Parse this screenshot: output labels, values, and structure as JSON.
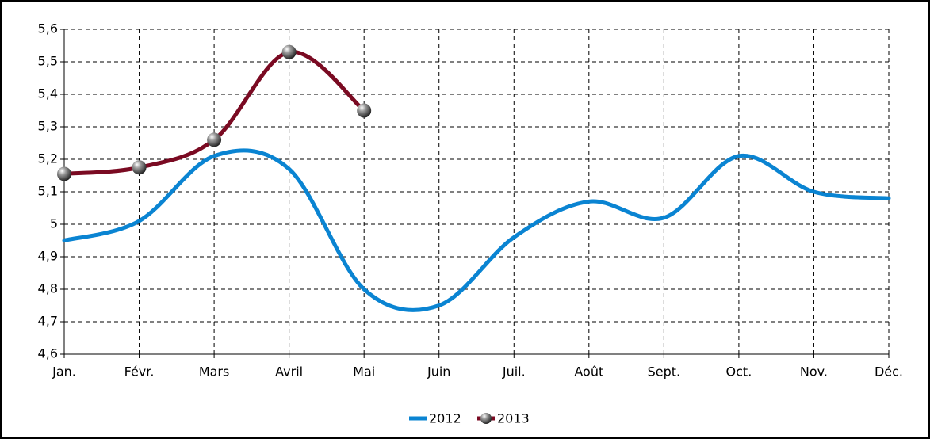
{
  "chart_data": {
    "type": "line",
    "smooth": true,
    "grid": true,
    "legend": "bottom",
    "categories": [
      "Jan.",
      "Févr.",
      "Mars",
      "Avril",
      "Mai",
      "Juin",
      "Juil.",
      "Août",
      "Sept.",
      "Oct.",
      "Nov.",
      "Déc."
    ],
    "series": [
      {
        "name": "2012",
        "color": "#0a84d2",
        "values": [
          4.95,
          5.01,
          5.21,
          5.17,
          4.8,
          4.75,
          4.96,
          5.07,
          5.02,
          5.21,
          5.1,
          5.08
        ]
      },
      {
        "name": "2013",
        "color": "#7a0a22",
        "marker": true,
        "values": [
          5.155,
          5.175,
          5.26,
          5.53,
          5.35,
          null,
          null,
          null,
          null,
          null,
          null,
          null
        ]
      }
    ],
    "ylim": [
      4.6,
      5.6
    ],
    "yticks": [
      {
        "value": 4.6,
        "label": "4,6"
      },
      {
        "value": 4.7,
        "label": "4,7"
      },
      {
        "value": 4.8,
        "label": "4,8"
      },
      {
        "value": 4.9,
        "label": "4,9"
      },
      5,
      {
        "value": 5.1,
        "label": "5,1"
      },
      {
        "value": 5.2,
        "label": "5,2"
      },
      {
        "value": 5.3,
        "label": "5,3"
      },
      {
        "value": 5.4,
        "label": "5,4"
      },
      {
        "value": 5.5,
        "label": "5,5"
      },
      {
        "value": 5.6,
        "label": "5,6"
      }
    ]
  }
}
